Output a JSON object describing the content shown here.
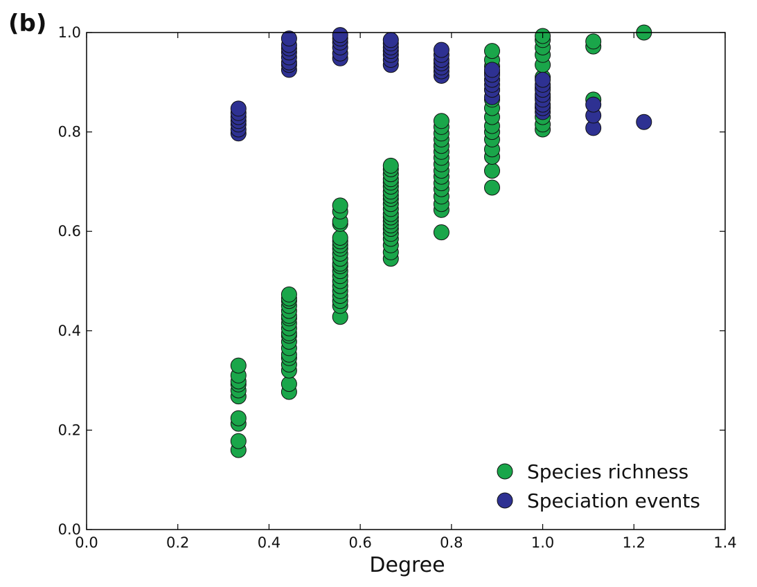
{
  "panel_label": "(b)",
  "chart_data": {
    "type": "scatter",
    "title": "",
    "xlabel": "Degree",
    "ylabel": "",
    "xlim": [
      0.0,
      1.4
    ],
    "ylim": [
      0.0,
      1.0
    ],
    "xticks": [
      0.0,
      0.2,
      0.4,
      0.6,
      0.8,
      1.0,
      1.2,
      1.4
    ],
    "xtick_labels": [
      "0.0",
      "0.2",
      "0.4",
      "0.6",
      "0.8",
      "1.0",
      "1.2",
      "1.4"
    ],
    "yticks": [
      0.0,
      0.2,
      0.4,
      0.6,
      0.8,
      1.0
    ],
    "ytick_labels": [
      "0.0",
      "0.2",
      "0.4",
      "0.6",
      "0.8",
      "1.0"
    ],
    "grid": false,
    "legend_position": "bottom-right",
    "series": [
      {
        "name": "Species richness",
        "color": "#1aa64a",
        "points": [
          [
            0.333,
            0.16
          ],
          [
            0.333,
            0.178
          ],
          [
            0.333,
            0.213
          ],
          [
            0.333,
            0.224
          ],
          [
            0.333,
            0.268
          ],
          [
            0.333,
            0.28
          ],
          [
            0.333,
            0.292
          ],
          [
            0.333,
            0.298
          ],
          [
            0.333,
            0.31
          ],
          [
            0.333,
            0.33
          ],
          [
            0.444,
            0.277
          ],
          [
            0.444,
            0.293
          ],
          [
            0.444,
            0.32
          ],
          [
            0.444,
            0.332
          ],
          [
            0.444,
            0.345
          ],
          [
            0.444,
            0.352
          ],
          [
            0.444,
            0.365
          ],
          [
            0.444,
            0.378
          ],
          [
            0.444,
            0.39
          ],
          [
            0.444,
            0.395
          ],
          [
            0.444,
            0.405
          ],
          [
            0.444,
            0.415
          ],
          [
            0.444,
            0.425
          ],
          [
            0.444,
            0.43
          ],
          [
            0.444,
            0.44
          ],
          [
            0.444,
            0.45
          ],
          [
            0.444,
            0.46
          ],
          [
            0.444,
            0.465
          ],
          [
            0.444,
            0.473
          ],
          [
            0.556,
            0.428
          ],
          [
            0.556,
            0.45
          ],
          [
            0.556,
            0.46
          ],
          [
            0.556,
            0.47
          ],
          [
            0.556,
            0.48
          ],
          [
            0.556,
            0.49
          ],
          [
            0.556,
            0.5
          ],
          [
            0.556,
            0.51
          ],
          [
            0.556,
            0.52
          ],
          [
            0.556,
            0.53
          ],
          [
            0.556,
            0.535
          ],
          [
            0.556,
            0.545
          ],
          [
            0.556,
            0.555
          ],
          [
            0.556,
            0.565
          ],
          [
            0.556,
            0.572
          ],
          [
            0.556,
            0.58
          ],
          [
            0.556,
            0.587
          ],
          [
            0.556,
            0.615
          ],
          [
            0.556,
            0.62
          ],
          [
            0.556,
            0.64
          ],
          [
            0.556,
            0.652
          ],
          [
            0.667,
            0.545
          ],
          [
            0.667,
            0.558
          ],
          [
            0.667,
            0.572
          ],
          [
            0.667,
            0.585
          ],
          [
            0.667,
            0.595
          ],
          [
            0.667,
            0.605
          ],
          [
            0.667,
            0.612
          ],
          [
            0.667,
            0.62
          ],
          [
            0.667,
            0.628
          ],
          [
            0.667,
            0.635
          ],
          [
            0.667,
            0.645
          ],
          [
            0.667,
            0.655
          ],
          [
            0.667,
            0.665
          ],
          [
            0.667,
            0.672
          ],
          [
            0.667,
            0.68
          ],
          [
            0.667,
            0.69
          ],
          [
            0.667,
            0.698
          ],
          [
            0.667,
            0.705
          ],
          [
            0.667,
            0.715
          ],
          [
            0.667,
            0.725
          ],
          [
            0.667,
            0.732
          ],
          [
            0.778,
            0.598
          ],
          [
            0.778,
            0.643
          ],
          [
            0.778,
            0.655
          ],
          [
            0.778,
            0.67
          ],
          [
            0.778,
            0.685
          ],
          [
            0.778,
            0.697
          ],
          [
            0.778,
            0.71
          ],
          [
            0.778,
            0.722
          ],
          [
            0.778,
            0.735
          ],
          [
            0.778,
            0.748
          ],
          [
            0.778,
            0.76
          ],
          [
            0.778,
            0.772
          ],
          [
            0.778,
            0.785
          ],
          [
            0.778,
            0.797
          ],
          [
            0.778,
            0.81
          ],
          [
            0.778,
            0.822
          ],
          [
            0.889,
            0.688
          ],
          [
            0.889,
            0.722
          ],
          [
            0.889,
            0.75
          ],
          [
            0.889,
            0.765
          ],
          [
            0.889,
            0.785
          ],
          [
            0.889,
            0.8
          ],
          [
            0.889,
            0.812
          ],
          [
            0.889,
            0.83
          ],
          [
            0.889,
            0.848
          ],
          [
            0.889,
            0.865
          ],
          [
            0.889,
            0.885
          ],
          [
            0.889,
            0.905
          ],
          [
            0.889,
            0.92
          ],
          [
            0.889,
            0.932
          ],
          [
            0.889,
            0.945
          ],
          [
            0.889,
            0.963
          ],
          [
            1.0,
            0.805
          ],
          [
            1.0,
            0.815
          ],
          [
            1.0,
            0.83
          ],
          [
            1.0,
            0.85
          ],
          [
            1.0,
            0.87
          ],
          [
            1.0,
            0.89
          ],
          [
            1.0,
            0.91
          ],
          [
            1.0,
            0.935
          ],
          [
            1.0,
            0.955
          ],
          [
            1.0,
            0.97
          ],
          [
            1.0,
            0.985
          ],
          [
            1.0,
            0.993
          ],
          [
            1.111,
            0.865
          ],
          [
            1.111,
            0.972
          ],
          [
            1.111,
            0.982
          ],
          [
            1.222,
            1.0
          ]
        ]
      },
      {
        "name": "Speciation events",
        "color": "#2e3192",
        "points": [
          [
            0.333,
            0.797
          ],
          [
            0.333,
            0.805
          ],
          [
            0.333,
            0.815
          ],
          [
            0.333,
            0.822
          ],
          [
            0.333,
            0.83
          ],
          [
            0.333,
            0.838
          ],
          [
            0.333,
            0.847
          ],
          [
            0.444,
            0.925
          ],
          [
            0.444,
            0.935
          ],
          [
            0.444,
            0.94
          ],
          [
            0.444,
            0.95
          ],
          [
            0.444,
            0.96
          ],
          [
            0.444,
            0.968
          ],
          [
            0.444,
            0.975
          ],
          [
            0.444,
            0.988
          ],
          [
            0.556,
            0.948
          ],
          [
            0.556,
            0.958
          ],
          [
            0.556,
            0.97
          ],
          [
            0.556,
            0.98
          ],
          [
            0.556,
            0.988
          ],
          [
            0.556,
            0.995
          ],
          [
            0.667,
            0.935
          ],
          [
            0.667,
            0.945
          ],
          [
            0.667,
            0.955
          ],
          [
            0.667,
            0.963
          ],
          [
            0.667,
            0.97
          ],
          [
            0.667,
            0.978
          ],
          [
            0.667,
            0.985
          ],
          [
            0.778,
            0.913
          ],
          [
            0.778,
            0.922
          ],
          [
            0.778,
            0.93
          ],
          [
            0.778,
            0.938
          ],
          [
            0.778,
            0.945
          ],
          [
            0.778,
            0.955
          ],
          [
            0.778,
            0.965
          ],
          [
            0.889,
            0.87
          ],
          [
            0.889,
            0.885
          ],
          [
            0.889,
            0.895
          ],
          [
            0.889,
            0.905
          ],
          [
            0.889,
            0.915
          ],
          [
            0.889,
            0.925
          ],
          [
            1.0,
            0.84
          ],
          [
            1.0,
            0.848
          ],
          [
            1.0,
            0.855
          ],
          [
            1.0,
            0.865
          ],
          [
            1.0,
            0.875
          ],
          [
            1.0,
            0.885
          ],
          [
            1.0,
            0.895
          ],
          [
            1.0,
            0.905
          ],
          [
            1.111,
            0.808
          ],
          [
            1.111,
            0.833
          ],
          [
            1.111,
            0.855
          ],
          [
            1.222,
            0.82
          ]
        ]
      }
    ]
  }
}
